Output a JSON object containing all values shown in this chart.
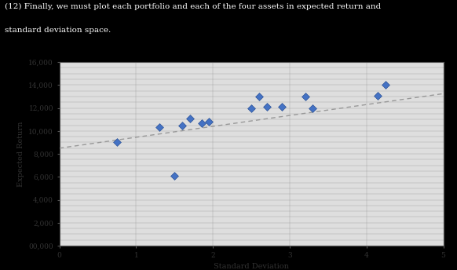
{
  "scatter_x": [
    0.75,
    1.3,
    1.5,
    1.6,
    1.7,
    1.85,
    1.95,
    2.5,
    2.6,
    2.7,
    2.9,
    3.2,
    3.3,
    4.15,
    4.25
  ],
  "scatter_y": [
    9000,
    10300,
    6100,
    10500,
    11100,
    10700,
    10800,
    12000,
    13000,
    12100,
    12100,
    13000,
    12000,
    13100,
    14000
  ],
  "trendline_x": [
    0.0,
    5.0
  ],
  "trendline_slope": 950,
  "trendline_intercept": 8500,
  "xlabel": "Standard Deviation",
  "ylabel": "Expected Return",
  "xlim": [
    0,
    5
  ],
  "ylim": [
    0,
    16000
  ],
  "xticks": [
    0,
    1,
    2,
    3,
    4,
    5
  ],
  "yticks": [
    0,
    2000,
    4000,
    6000,
    8000,
    10000,
    12000,
    14000,
    16000
  ],
  "ytick_labels": [
    "00,000",
    "2,000",
    "4,000",
    "6,000",
    "8,000",
    "10,000",
    "12,000",
    "14,000",
    "16,000"
  ],
  "marker_color": "#4472C4",
  "marker_edge_color": "#2F5597",
  "trendline_color": "#999999",
  "grid_color": "#888888",
  "outer_bg_color": "#000000",
  "plot_bg_color": "#DEDEDE",
  "text_color": "#FFFFFF",
  "axis_text_color": "#333333",
  "header_text_line1": "(12) Finally, we must plot each portfolio and each of the four assets in expected return and",
  "header_text_line2": "standard deviation space.",
  "header_fontsize": 7.5,
  "axis_fontsize": 7,
  "tick_fontsize": 6.5
}
